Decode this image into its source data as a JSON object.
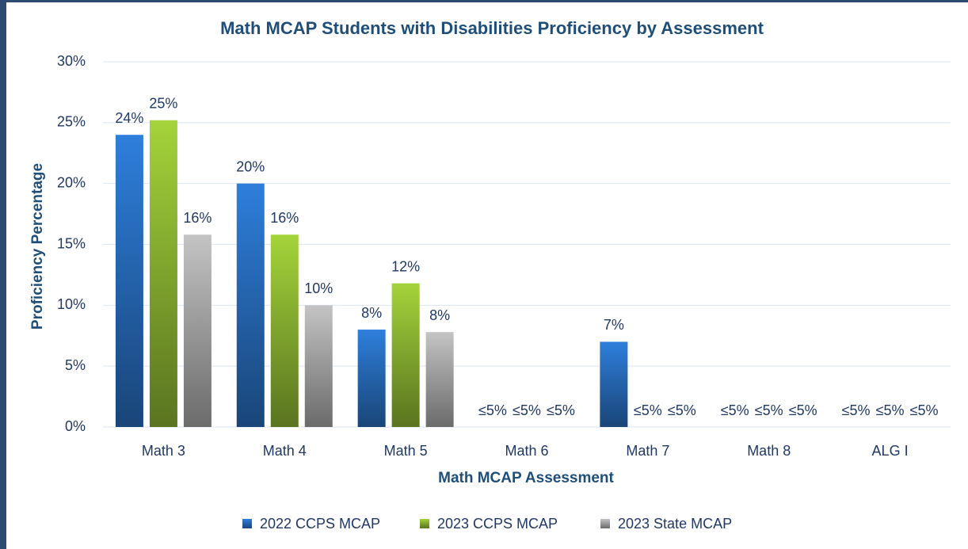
{
  "chart_data": {
    "type": "bar",
    "title": "Math MCAP Students with Disabilities Proficiency by Assessment",
    "x_label": "Math MCAP Assessment",
    "y_label": "Proficiency Percentage",
    "categories": [
      "Math 3",
      "Math 4",
      "Math 5",
      "Math 6",
      "Math 7",
      "Math 8",
      "ALG I"
    ],
    "series": [
      {
        "name": "2022 CCPS MCAP",
        "color": "#2e7fdc",
        "values": [
          24,
          20,
          8,
          null,
          7,
          null,
          null
        ],
        "value_labels": [
          "24%",
          "20%",
          "8%",
          "≤5%",
          "7%",
          "≤5%",
          "≤5%"
        ]
      },
      {
        "name": "2023 CCPS MCAP",
        "color": "#a4d43a",
        "values": [
          25.2,
          15.8,
          11.8,
          null,
          null,
          null,
          null
        ],
        "value_labels": [
          "25%",
          "16%",
          "12%",
          "≤5%",
          "≤5%",
          "≤5%",
          "≤5%"
        ]
      },
      {
        "name": "2023 State MCAP",
        "color": "#c4c4c4",
        "values": [
          15.8,
          10,
          7.8,
          null,
          null,
          null,
          null
        ],
        "value_labels": [
          "16%",
          "10%",
          "8%",
          "≤5%",
          "≤5%",
          "≤5%",
          "≤5%"
        ]
      }
    ],
    "ylim": [
      0,
      30
    ],
    "yticks": [
      {
        "value": 0,
        "label": "0%"
      },
      {
        "value": 5,
        "label": "5%"
      },
      {
        "value": 10,
        "label": "10%"
      },
      {
        "value": 15,
        "label": "15%"
      },
      {
        "value": 20,
        "label": "20%"
      },
      {
        "value": 25,
        "label": "25%"
      },
      {
        "value": 30,
        "label": "30%"
      }
    ],
    "grid": true,
    "legend": "bottom"
  }
}
